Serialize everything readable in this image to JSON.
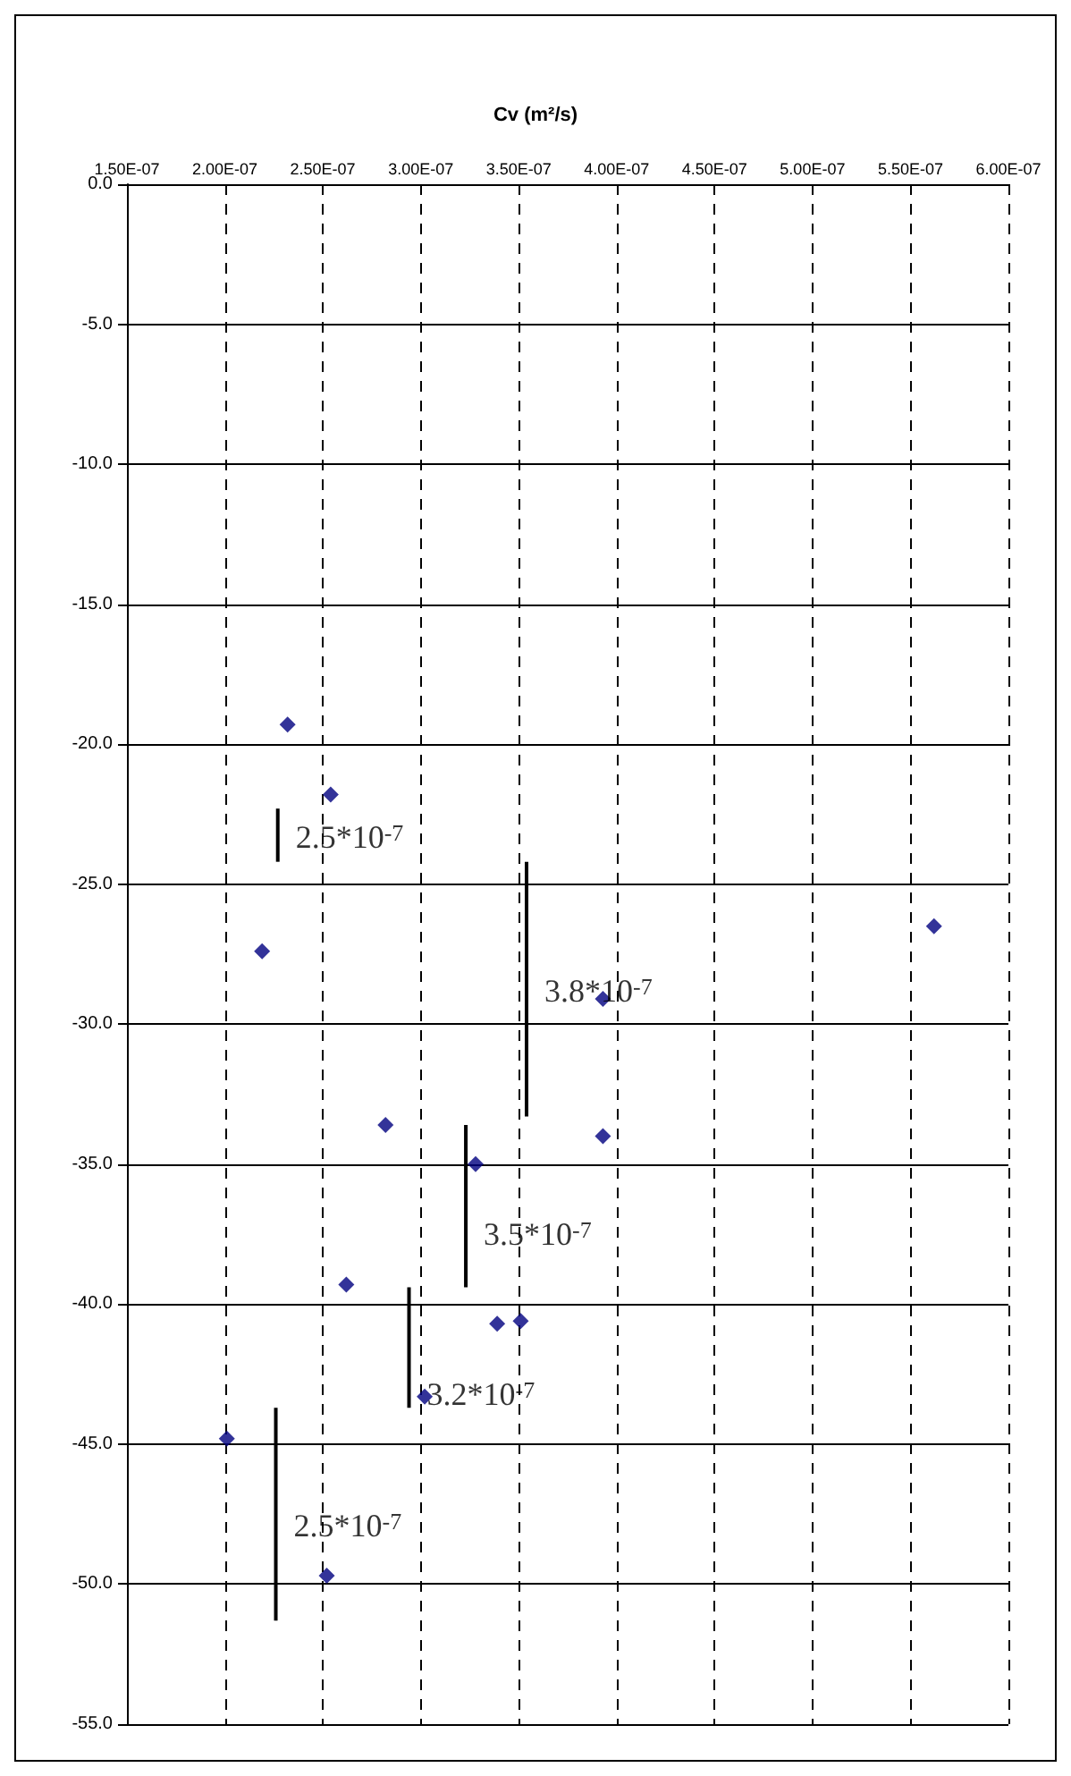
{
  "chart_data": {
    "type": "scatter",
    "title": "Cv (m²/s)",
    "xlim": [
      1.5e-07,
      6e-07
    ],
    "xticks": [
      {
        "value": 1.5e-07,
        "label": "1.50E-07"
      },
      {
        "value": 2e-07,
        "label": "2.00E-07"
      },
      {
        "value": 2.5e-07,
        "label": "2.50E-07"
      },
      {
        "value": 3e-07,
        "label": "3.00E-07"
      },
      {
        "value": 3.5e-07,
        "label": "3.50E-07"
      },
      {
        "value": 4e-07,
        "label": "4.00E-07"
      },
      {
        "value": 4.5e-07,
        "label": "4.50E-07"
      },
      {
        "value": 5e-07,
        "label": "5.00E-07"
      },
      {
        "value": 5.5e-07,
        "label": "5.50E-07"
      },
      {
        "value": 6e-07,
        "label": "6.00E-07"
      }
    ],
    "ylim": [
      -55,
      0
    ],
    "yticks": [
      {
        "value": 0,
        "label": "0.0"
      },
      {
        "value": -5,
        "label": "-5.0"
      },
      {
        "value": -10,
        "label": "-10.0"
      },
      {
        "value": -15,
        "label": "-15.0"
      },
      {
        "value": -20,
        "label": "-20.0"
      },
      {
        "value": -25,
        "label": "-25.0"
      },
      {
        "value": -30,
        "label": "-30.0"
      },
      {
        "value": -35,
        "label": "-35.0"
      },
      {
        "value": -40,
        "label": "-40.0"
      },
      {
        "value": -45,
        "label": "-45.0"
      },
      {
        "value": -50,
        "label": "-50.0"
      },
      {
        "value": -55,
        "label": "-55.0"
      }
    ],
    "grid": true,
    "marker": "diamond",
    "series": [
      {
        "color": "#000080",
        "x": [
          2.32e-07,
          2.54e-07,
          2.19e-07,
          3.93e-07,
          2.82e-07,
          3.93e-07,
          3.28e-07,
          2.62e-07,
          3.39e-07,
          3.51e-07,
          3.02e-07,
          2.01e-07,
          2.52e-07,
          5.62e-07
        ],
        "values": [
          -19.3,
          -21.8,
          -27.4,
          -29.1,
          -33.6,
          -34.0,
          -35.0,
          -39.3,
          -40.7,
          -40.6,
          -43.3,
          -44.8,
          -49.7,
          -26.5
        ]
      },
      {
        "type": "line",
        "marker": "none",
        "color": "#000000",
        "x": [
          2.27e-07,
          2.27e-07
        ],
        "values": [
          -22.3,
          -24.2
        ]
      },
      {
        "type": "line",
        "marker": "none",
        "color": "#000000",
        "x": [
          3.54e-07,
          3.54e-07
        ],
        "values": [
          -24.2,
          -33.3
        ]
      },
      {
        "type": "line",
        "marker": "none",
        "color": "#000000",
        "x": [
          3.23e-07,
          3.23e-07
        ],
        "values": [
          -33.6,
          -39.4
        ]
      },
      {
        "type": "line",
        "marker": "none",
        "color": "#000000",
        "x": [
          2.94e-07,
          2.94e-07
        ],
        "values": [
          -39.4,
          -43.7
        ]
      },
      {
        "type": "line",
        "marker": "none",
        "color": "#000000",
        "x": [
          2.26e-07,
          2.26e-07
        ],
        "values": [
          -43.7,
          -51.3
        ]
      }
    ],
    "annotations": [
      {
        "text": "2.5*10$^{-7}$",
        "x": 2.27e-07,
        "y": -23.3
      },
      {
        "text": "3.8*10$^{-7}$",
        "x": 3.54e-07,
        "y": -28.8
      },
      {
        "text": "3.5*10$^{-7}$",
        "x": 3.23e-07,
        "y": -37.5
      },
      {
        "text": "3.2*10$^{-7}$",
        "x": 2.94e-07,
        "y": -43.2
      },
      {
        "text": "2.5*10$^{-7}$",
        "x": 2.26e-07,
        "y": -47.9
      }
    ]
  }
}
